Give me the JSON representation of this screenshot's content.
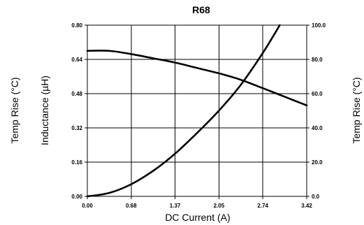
{
  "chart_data": {
    "type": "line",
    "title": "R68",
    "xlabel": "DC Current (A)",
    "ylabel_left_outer": "Temp Rise (°C)",
    "ylabel_left_inner": "Inductance (µH)",
    "ylabel_right": "Temp Rise (°C)",
    "xlim": [
      0,
      3.42
    ],
    "ylim_left": [
      0,
      0.8
    ],
    "ylim_right": [
      0,
      100
    ],
    "x_ticks": [
      "0.00",
      "0.68",
      "1.37",
      "2.05",
      "2.74",
      "3.42"
    ],
    "y_left_ticks": [
      "0.00",
      "0.16",
      "0.32",
      "0.48",
      "0.64",
      "0.80"
    ],
    "y_right_ticks": [
      "0.0",
      "20.0",
      "40.0",
      "60.0",
      "80.0",
      "100.0"
    ],
    "grid": true,
    "series": [
      {
        "axis": "left",
        "x": [
          0,
          0.34,
          0.68,
          1.03,
          1.37,
          1.71,
          2.05,
          2.39,
          2.74,
          3.08,
          3.42
        ],
        "values": [
          0.68,
          0.68,
          0.665,
          0.645,
          0.625,
          0.6,
          0.575,
          0.545,
          0.505,
          0.465,
          0.425
        ]
      },
      {
        "axis": "right",
        "x": [
          0,
          0.34,
          0.68,
          1.03,
          1.37,
          1.71,
          2.05,
          2.39,
          2.74,
          3.0
        ],
        "values": [
          0,
          2,
          7,
          15,
          25,
          37,
          50,
          65,
          84,
          100
        ]
      }
    ]
  }
}
